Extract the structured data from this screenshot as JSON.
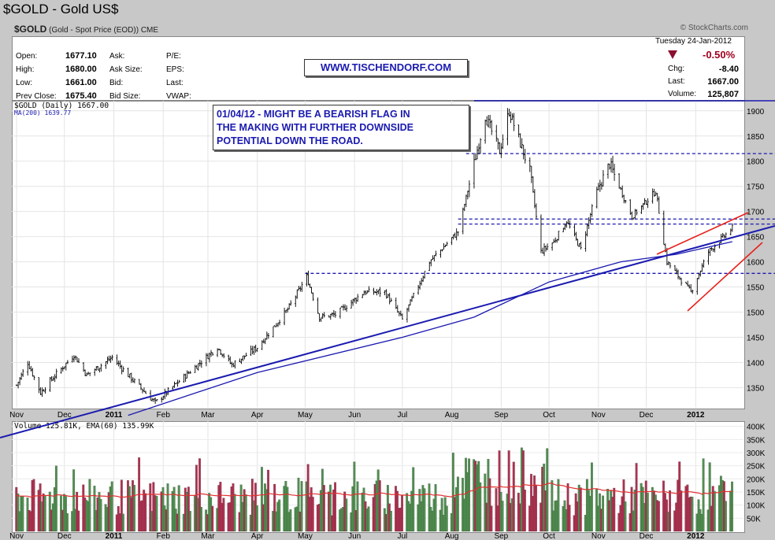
{
  "header": {
    "title": "$GOLD - Gold US$",
    "symbol": "$GOLD",
    "description": "(Gold - Spot Price (EOD)) CME",
    "copyright": "© StockCharts.com",
    "date": "Tuesday   24-Jan-2012",
    "change_pct": "-0.50%",
    "change_label": "Chg:",
    "change_value": "-8.40",
    "last_label": "Last:",
    "last_value": "1667.00",
    "volume_label": "Volume:",
    "volume_value": "125,807"
  },
  "quote": [
    {
      "label": "Open:",
      "value": "1677.10",
      "label2": "Ask:",
      "label3": "P/E:"
    },
    {
      "label": "High:",
      "value": "1680.00",
      "label2": "Ask Size:",
      "label3": "EPS:"
    },
    {
      "label": "Low:",
      "value": "1661.00",
      "label2": "Bid:",
      "label3": "Last:"
    },
    {
      "label": "Prev Close:",
      "value": "1675.40",
      "label2": "Bid Size:",
      "label3": "VWAP:"
    }
  ],
  "url_box": "WWW.TISCHENDORF.COM",
  "annotation": {
    "lines": [
      "01/04/12 - MIGHT BE A BEARISH FLAG IN",
      "THE MAKING WITH FURTHER DOWNSIDE",
      "POTENTIAL DOWN THE ROAD."
    ]
  },
  "colors": {
    "price_bar": "#000000",
    "ma200": "#1a1ab0",
    "trendline": "#1a1ab0",
    "channel": "#e8201a",
    "vol_up": "#4f8f4f",
    "vol_down": "#b03050",
    "vol_ema": "#e03030"
  },
  "chart_data": [
    {
      "type": "ohlc",
      "legend": [
        "$GOLD (Daily) 1667.00",
        "MA(200) 1639.77"
      ],
      "x_labels": [
        "Nov",
        "Dec",
        "2011",
        "Feb",
        "Mar",
        "Apr",
        "May",
        "Jun",
        "Jul",
        "Aug",
        "Sep",
        "Oct",
        "Nov",
        "Dec",
        "2012"
      ],
      "y_ticks": [
        1350,
        1400,
        1450,
        1500,
        1550,
        1600,
        1650,
        1700,
        1750,
        1800,
        1850,
        1900
      ],
      "ylim": [
        1310,
        1920
      ],
      "price_path": [
        [
          "2010-11-01",
          1355
        ],
        [
          "2010-11-08",
          1400
        ],
        [
          "2010-11-16",
          1340
        ],
        [
          "2010-11-24",
          1370
        ],
        [
          "2010-12-07",
          1415
        ],
        [
          "2010-12-15",
          1375
        ],
        [
          "2010-12-31",
          1410
        ],
        [
          "2011-01-10",
          1375
        ],
        [
          "2011-01-27",
          1320
        ],
        [
          "2011-02-10",
          1360
        ],
        [
          "2011-03-07",
          1430
        ],
        [
          "2011-03-16",
          1395
        ],
        [
          "2011-04-01",
          1430
        ],
        [
          "2011-04-20",
          1505
        ],
        [
          "2011-05-02",
          1570
        ],
        [
          "2011-05-10",
          1490
        ],
        [
          "2011-05-20",
          1495
        ],
        [
          "2011-06-07",
          1540
        ],
        [
          "2011-06-20",
          1540
        ],
        [
          "2011-07-01",
          1485
        ],
        [
          "2011-07-18",
          1600
        ],
        [
          "2011-08-05",
          1660
        ],
        [
          "2011-08-22",
          1890
        ],
        [
          "2011-08-31",
          1820
        ],
        [
          "2011-09-06",
          1900
        ],
        [
          "2011-09-19",
          1780
        ],
        [
          "2011-09-26",
          1620
        ],
        [
          "2011-10-04",
          1640
        ],
        [
          "2011-10-12",
          1680
        ],
        [
          "2011-10-21",
          1625
        ],
        [
          "2011-10-31",
          1740
        ],
        [
          "2011-11-08",
          1795
        ],
        [
          "2011-11-22",
          1690
        ],
        [
          "2011-12-07",
          1740
        ],
        [
          "2011-12-14",
          1600
        ],
        [
          "2011-12-29",
          1540
        ],
        [
          "2012-01-09",
          1620
        ],
        [
          "2012-01-24",
          1667
        ]
      ],
      "ma200_path": [
        [
          "2011-01-10",
          1295
        ],
        [
          "2011-04-01",
          1380
        ],
        [
          "2011-07-01",
          1450
        ],
        [
          "2011-08-15",
          1490
        ],
        [
          "2011-10-01",
          1560
        ],
        [
          "2011-11-15",
          1600
        ],
        [
          "2011-12-20",
          1615
        ],
        [
          "2012-01-24",
          1640
        ]
      ],
      "horizontal_lines": [
        {
          "value": 1920,
          "style": "solid",
          "from": "2011-08-15"
        },
        {
          "value": 1815,
          "style": "dashed",
          "from": "2011-08-10"
        },
        {
          "value": 1685,
          "style": "dashed",
          "from": "2011-08-05"
        },
        {
          "value": 1675,
          "style": "dashed",
          "from": "2011-08-05"
        },
        {
          "value": 1577,
          "style": "dashed",
          "from": "2011-05-01"
        }
      ]
    },
    {
      "type": "bar",
      "legend": "Volume 125.81K, EMA(60) 135.99K",
      "y_ticks": [
        "50K",
        "100K",
        "150K",
        "200K",
        "250K",
        "300K",
        "350K",
        "400K"
      ],
      "ylim": [
        0,
        420000
      ]
    }
  ]
}
